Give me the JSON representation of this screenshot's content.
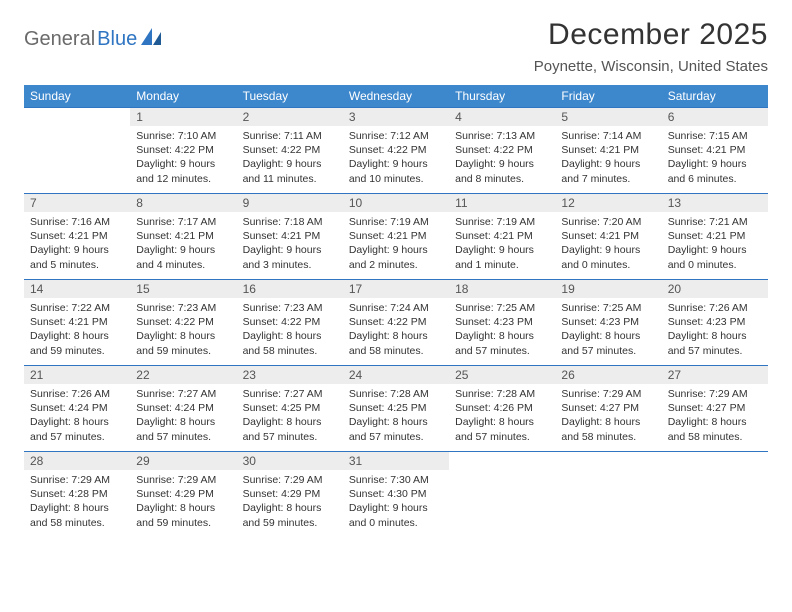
{
  "logo": {
    "text1": "General",
    "text2": "Blue"
  },
  "title": "December 2025",
  "subtitle": "Poynette, Wisconsin, United States",
  "colors": {
    "header_bg": "#3d87cc",
    "header_text": "#ffffff",
    "cell_border": "#2f75c2",
    "daynum_bg": "#ededed",
    "logo_gray": "#6a6a6a",
    "logo_blue": "#2f75c2"
  },
  "weekdays": [
    "Sunday",
    "Monday",
    "Tuesday",
    "Wednesday",
    "Thursday",
    "Friday",
    "Saturday"
  ],
  "weeks": [
    [
      null,
      {
        "n": "1",
        "sr": "Sunrise: 7:10 AM",
        "ss": "Sunset: 4:22 PM",
        "d1": "Daylight: 9 hours",
        "d2": "and 12 minutes."
      },
      {
        "n": "2",
        "sr": "Sunrise: 7:11 AM",
        "ss": "Sunset: 4:22 PM",
        "d1": "Daylight: 9 hours",
        "d2": "and 11 minutes."
      },
      {
        "n": "3",
        "sr": "Sunrise: 7:12 AM",
        "ss": "Sunset: 4:22 PM",
        "d1": "Daylight: 9 hours",
        "d2": "and 10 minutes."
      },
      {
        "n": "4",
        "sr": "Sunrise: 7:13 AM",
        "ss": "Sunset: 4:22 PM",
        "d1": "Daylight: 9 hours",
        "d2": "and 8 minutes."
      },
      {
        "n": "5",
        "sr": "Sunrise: 7:14 AM",
        "ss": "Sunset: 4:21 PM",
        "d1": "Daylight: 9 hours",
        "d2": "and 7 minutes."
      },
      {
        "n": "6",
        "sr": "Sunrise: 7:15 AM",
        "ss": "Sunset: 4:21 PM",
        "d1": "Daylight: 9 hours",
        "d2": "and 6 minutes."
      }
    ],
    [
      {
        "n": "7",
        "sr": "Sunrise: 7:16 AM",
        "ss": "Sunset: 4:21 PM",
        "d1": "Daylight: 9 hours",
        "d2": "and 5 minutes."
      },
      {
        "n": "8",
        "sr": "Sunrise: 7:17 AM",
        "ss": "Sunset: 4:21 PM",
        "d1": "Daylight: 9 hours",
        "d2": "and 4 minutes."
      },
      {
        "n": "9",
        "sr": "Sunrise: 7:18 AM",
        "ss": "Sunset: 4:21 PM",
        "d1": "Daylight: 9 hours",
        "d2": "and 3 minutes."
      },
      {
        "n": "10",
        "sr": "Sunrise: 7:19 AM",
        "ss": "Sunset: 4:21 PM",
        "d1": "Daylight: 9 hours",
        "d2": "and 2 minutes."
      },
      {
        "n": "11",
        "sr": "Sunrise: 7:19 AM",
        "ss": "Sunset: 4:21 PM",
        "d1": "Daylight: 9 hours",
        "d2": "and 1 minute."
      },
      {
        "n": "12",
        "sr": "Sunrise: 7:20 AM",
        "ss": "Sunset: 4:21 PM",
        "d1": "Daylight: 9 hours",
        "d2": "and 0 minutes."
      },
      {
        "n": "13",
        "sr": "Sunrise: 7:21 AM",
        "ss": "Sunset: 4:21 PM",
        "d1": "Daylight: 9 hours",
        "d2": "and 0 minutes."
      }
    ],
    [
      {
        "n": "14",
        "sr": "Sunrise: 7:22 AM",
        "ss": "Sunset: 4:21 PM",
        "d1": "Daylight: 8 hours",
        "d2": "and 59 minutes."
      },
      {
        "n": "15",
        "sr": "Sunrise: 7:23 AM",
        "ss": "Sunset: 4:22 PM",
        "d1": "Daylight: 8 hours",
        "d2": "and 59 minutes."
      },
      {
        "n": "16",
        "sr": "Sunrise: 7:23 AM",
        "ss": "Sunset: 4:22 PM",
        "d1": "Daylight: 8 hours",
        "d2": "and 58 minutes."
      },
      {
        "n": "17",
        "sr": "Sunrise: 7:24 AM",
        "ss": "Sunset: 4:22 PM",
        "d1": "Daylight: 8 hours",
        "d2": "and 58 minutes."
      },
      {
        "n": "18",
        "sr": "Sunrise: 7:25 AM",
        "ss": "Sunset: 4:23 PM",
        "d1": "Daylight: 8 hours",
        "d2": "and 57 minutes."
      },
      {
        "n": "19",
        "sr": "Sunrise: 7:25 AM",
        "ss": "Sunset: 4:23 PM",
        "d1": "Daylight: 8 hours",
        "d2": "and 57 minutes."
      },
      {
        "n": "20",
        "sr": "Sunrise: 7:26 AM",
        "ss": "Sunset: 4:23 PM",
        "d1": "Daylight: 8 hours",
        "d2": "and 57 minutes."
      }
    ],
    [
      {
        "n": "21",
        "sr": "Sunrise: 7:26 AM",
        "ss": "Sunset: 4:24 PM",
        "d1": "Daylight: 8 hours",
        "d2": "and 57 minutes."
      },
      {
        "n": "22",
        "sr": "Sunrise: 7:27 AM",
        "ss": "Sunset: 4:24 PM",
        "d1": "Daylight: 8 hours",
        "d2": "and 57 minutes."
      },
      {
        "n": "23",
        "sr": "Sunrise: 7:27 AM",
        "ss": "Sunset: 4:25 PM",
        "d1": "Daylight: 8 hours",
        "d2": "and 57 minutes."
      },
      {
        "n": "24",
        "sr": "Sunrise: 7:28 AM",
        "ss": "Sunset: 4:25 PM",
        "d1": "Daylight: 8 hours",
        "d2": "and 57 minutes."
      },
      {
        "n": "25",
        "sr": "Sunrise: 7:28 AM",
        "ss": "Sunset: 4:26 PM",
        "d1": "Daylight: 8 hours",
        "d2": "and 57 minutes."
      },
      {
        "n": "26",
        "sr": "Sunrise: 7:29 AM",
        "ss": "Sunset: 4:27 PM",
        "d1": "Daylight: 8 hours",
        "d2": "and 58 minutes."
      },
      {
        "n": "27",
        "sr": "Sunrise: 7:29 AM",
        "ss": "Sunset: 4:27 PM",
        "d1": "Daylight: 8 hours",
        "d2": "and 58 minutes."
      }
    ],
    [
      {
        "n": "28",
        "sr": "Sunrise: 7:29 AM",
        "ss": "Sunset: 4:28 PM",
        "d1": "Daylight: 8 hours",
        "d2": "and 58 minutes."
      },
      {
        "n": "29",
        "sr": "Sunrise: 7:29 AM",
        "ss": "Sunset: 4:29 PM",
        "d1": "Daylight: 8 hours",
        "d2": "and 59 minutes."
      },
      {
        "n": "30",
        "sr": "Sunrise: 7:29 AM",
        "ss": "Sunset: 4:29 PM",
        "d1": "Daylight: 8 hours",
        "d2": "and 59 minutes."
      },
      {
        "n": "31",
        "sr": "Sunrise: 7:30 AM",
        "ss": "Sunset: 4:30 PM",
        "d1": "Daylight: 9 hours",
        "d2": "and 0 minutes."
      },
      null,
      null,
      null
    ]
  ]
}
